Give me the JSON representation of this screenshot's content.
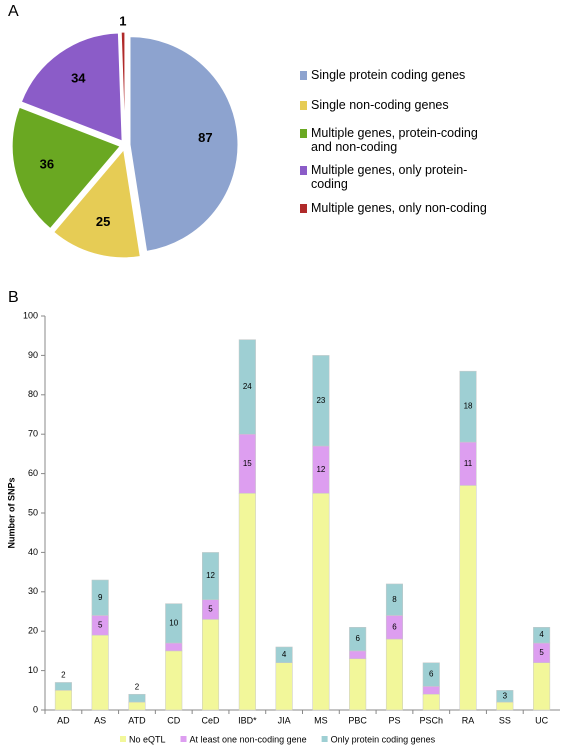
{
  "chart_data": [
    {
      "type": "pie",
      "panel_label": "A",
      "categories": [
        "Single protein coding genes",
        "Single non-coding genes",
        "Multiple genes, protein-coding and non-coding",
        "Multiple genes, only protein-coding",
        "Multiple genes, only non-coding"
      ],
      "values": [
        87,
        25,
        36,
        34,
        1
      ],
      "colors": [
        "#8da3cf",
        "#e6cc55",
        "#6aa822",
        "#8b5cc8",
        "#b02a2a"
      ]
    },
    {
      "type": "stacked_bar",
      "panel_label": "B",
      "y_label": "Number of SNPs",
      "categories": [
        "AD",
        "AS",
        "ATD",
        "CD",
        "CeD",
        "IBD*",
        "JIA",
        "MS",
        "PBC",
        "PS",
        "PSCh",
        "RA",
        "SS",
        "UC"
      ],
      "series": [
        {
          "name": "No eQTL",
          "color": "#f2f79a",
          "show_labels": false,
          "values": [
            5,
            19,
            2,
            15,
            23,
            55,
            12,
            55,
            13,
            18,
            4,
            57,
            2,
            12
          ]
        },
        {
          "name": "At least one non-coding gene",
          "color": "#dd9ef0",
          "show_labels": true,
          "values": [
            0,
            5,
            0,
            2,
            5,
            15,
            0,
            12,
            2,
            6,
            2,
            11,
            0,
            5
          ]
        },
        {
          "name": "Only protein coding genes",
          "color": "#9ecfd3",
          "show_labels": true,
          "values": [
            2,
            9,
            2,
            10,
            12,
            24,
            4,
            23,
            6,
            8,
            6,
            18,
            3,
            4
          ]
        }
      ],
      "ylim": [
        0,
        100
      ],
      "yticks": [
        0,
        10,
        20,
        30,
        40,
        50,
        60,
        70,
        80,
        90,
        100
      ]
    }
  ]
}
